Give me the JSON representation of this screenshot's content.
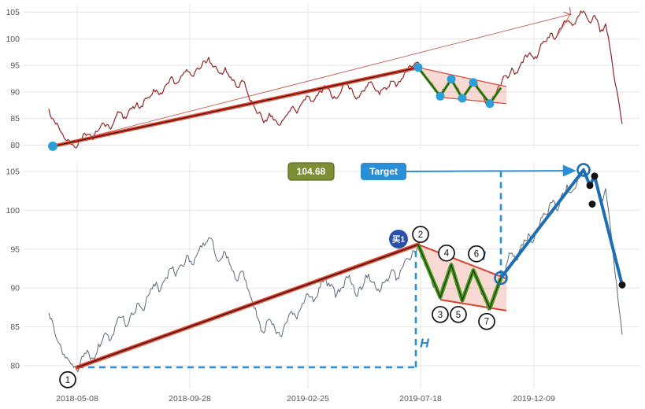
{
  "chart_data": {
    "type": "line",
    "x_axis": {
      "day0_date": "2018-04-02",
      "step_days": 7,
      "range_days": [
        -32,
        750
      ],
      "ticks": [
        {
          "day": 36,
          "label": "2018-05-08"
        },
        {
          "day": 179,
          "label": "2018-09-28"
        },
        {
          "day": 329,
          "label": "2019-02-25"
        },
        {
          "day": 472,
          "label": "2019-07-18"
        },
        {
          "day": 616,
          "label": "2019-12-09"
        }
      ]
    },
    "y_axis": {
      "ticks": [
        80,
        85,
        90,
        95,
        100,
        105
      ],
      "range": [
        78.9,
        106.4
      ]
    },
    "grid": true,
    "legend": false,
    "prices": [
      86.8,
      84.5,
      82.8,
      81.0,
      80.2,
      79.5,
      81.2,
      82.0,
      81.0,
      82.8,
      84.0,
      83.2,
      85.0,
      86.2,
      85.0,
      86.8,
      88.0,
      87.2,
      89.0,
      90.5,
      89.5,
      91.0,
      92.5,
      91.5,
      93.0,
      94.2,
      93.0,
      94.5,
      95.8,
      96.5,
      94.8,
      93.5,
      94.6,
      92.8,
      91.0,
      92.2,
      90.0,
      88.0,
      86.0,
      84.2,
      86.0,
      84.8,
      83.8,
      85.5,
      87.0,
      86.0,
      88.0,
      89.2,
      88.2,
      90.0,
      91.2,
      90.2,
      88.8,
      90.0,
      91.5,
      90.5,
      89.0,
      90.2,
      91.8,
      90.8,
      89.5,
      90.8,
      92.0,
      91.0,
      92.5,
      93.8,
      94.8,
      95.6,
      93.5,
      91.8,
      90.2,
      88.8,
      91.0,
      93.0,
      90.8,
      88.4,
      90.4,
      92.3,
      90.3,
      88.6,
      87.4,
      89.4,
      91.3,
      93.0,
      94.5,
      93.6,
      95.5,
      97.0,
      96.2,
      98.0,
      99.5,
      101.0,
      100.2,
      102.0,
      103.3,
      102.5,
      104.2,
      105.2,
      103.2,
      104.4,
      101.3,
      102.8,
      97.0,
      90.5,
      84.0
    ]
  },
  "annotations": {
    "overview": {
      "start_dot": {
        "day": 5,
        "v": 79.8
      },
      "trend_line": [
        [
          5,
          79.8
        ],
        [
          469,
          94.6
        ]
      ],
      "projection_arrow": [
        [
          5,
          79.8
        ],
        [
          662,
          104.6
        ],
        [
          645,
          100.4
        ]
      ],
      "flag_fill": [
        [
          469,
          94.6
        ],
        [
          581,
          91.0
        ],
        [
          581,
          87.8
        ],
        [
          497,
          89.0
        ]
      ],
      "flag_upper": [
        [
          469,
          94.6
        ],
        [
          581,
          91.0
        ]
      ],
      "flag_lower": [
        [
          497,
          89.0
        ],
        [
          581,
          87.8
        ]
      ],
      "zigzag": [
        [
          469,
          94.6
        ],
        [
          497,
          89.2
        ],
        [
          511,
          92.4
        ],
        [
          525,
          88.8
        ],
        [
          539,
          91.8
        ],
        [
          560,
          87.8
        ],
        [
          574,
          90.8
        ]
      ],
      "vertex_dots": [
        [
          469,
          94.6
        ],
        [
          497,
          89.2
        ],
        [
          511,
          92.4
        ],
        [
          525,
          88.8
        ],
        [
          539,
          91.8
        ],
        [
          560,
          87.8
        ]
      ]
    },
    "detail": {
      "trend_line": [
        [
          36,
          79.8
        ],
        [
          469,
          95.6
        ]
      ],
      "flag_fill": [
        [
          469,
          95.6
        ],
        [
          581,
          91.2
        ],
        [
          581,
          87.1
        ],
        [
          497,
          88.5
        ]
      ],
      "flag_upper": [
        [
          469,
          95.6
        ],
        [
          581,
          91.2
        ]
      ],
      "flag_lower": [
        [
          497,
          88.5
        ],
        [
          581,
          87.1
        ]
      ],
      "zigzag": [
        [
          469,
          95.6
        ],
        [
          497,
          88.8
        ],
        [
          511,
          93.0
        ],
        [
          525,
          88.4
        ],
        [
          539,
          92.3
        ],
        [
          560,
          87.4
        ],
        [
          574,
          91.3
        ]
      ],
      "rally_line": [
        [
          574,
          91.3
        ],
        [
          679,
          105.2
        ],
        [
          687,
          103.2
        ],
        [
          693,
          104.4
        ],
        [
          728,
          90.4
        ]
      ],
      "rings": [
        {
          "day": 574,
          "v": 91.3
        },
        {
          "day": 679,
          "v": 105.2
        }
      ],
      "black_dots": [
        [
          687,
          103.2
        ],
        [
          690,
          100.8
        ],
        [
          693,
          104.4
        ],
        [
          728,
          90.4
        ]
      ],
      "dash_h": [
        [
          36,
          79.8
        ],
        [
          466,
          79.8
        ]
      ],
      "dash_v1": [
        [
          466,
          79.8
        ],
        [
          466,
          95.2
        ]
      ],
      "dash_v2": [
        [
          574,
          91.5
        ],
        [
          574,
          105.0
        ]
      ],
      "h1_label": {
        "text": "H",
        "day": 477,
        "v": 82.4
      },
      "h2_label": {
        "text": "H",
        "day": 549,
        "v": 93.6
      },
      "price_label": {
        "text": "104.68",
        "day": 333,
        "v": 105.0
      },
      "target_label": {
        "text": "Target",
        "day": 425,
        "v": 105.0
      },
      "target_arrow": [
        [
          452,
          105.0
        ],
        [
          668,
          105.1
        ]
      ],
      "buy_badge": {
        "text": "买1",
        "day": 444,
        "v": 96.3
      },
      "points": [
        {
          "n": "1",
          "day": 24,
          "v": 78.2
        },
        {
          "n": "2",
          "day": 472,
          "v": 96.9
        },
        {
          "n": "3",
          "day": 497,
          "v": 86.6
        },
        {
          "n": "4",
          "day": 505,
          "v": 94.5
        },
        {
          "n": "5",
          "day": 520,
          "v": 86.6
        },
        {
          "n": "6",
          "day": 543,
          "v": 94.4
        },
        {
          "n": "7",
          "day": 556,
          "v": 85.7
        }
      ]
    }
  },
  "colors": {
    "overview_line": "#8e2727",
    "detail_line": "#5b6877",
    "trend_red": "#e8432c",
    "trend_core": "#26100a",
    "zigzag_green": "#4e9b1e",
    "zigzag_core": "#16380a",
    "flag_fill": "rgba(232,120,100,0.28)",
    "flag_border": "#d9402e",
    "projection_red": "#c2574a",
    "rally_blue": "#1e6fb2",
    "dash_blue": "#2b8fd6",
    "handle_blue": "#2d9fd8",
    "buy_badge": "#2b50a8",
    "target_box": "#2b8fd6",
    "price_box": "#7d8f35",
    "price_box_border": "#5c6a22",
    "black": "#111111",
    "grid": "#e4e4e4",
    "axis_text": "#555555"
  }
}
